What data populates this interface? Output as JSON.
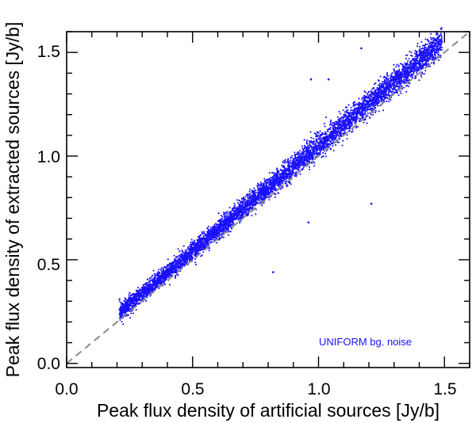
{
  "chart_data": {
    "type": "scatter",
    "xlabel": "Peak flux density of artificial sources [Jy/b]",
    "ylabel": "Peak flux density of extracted sources [Jy/b]",
    "xlim": [
      0.0,
      1.6
    ],
    "ylim": [
      -0.02,
      1.6
    ],
    "x_ticks": [
      "0.0",
      "0.5",
      "1.0",
      "1.5"
    ],
    "y_ticks": [
      "0.0",
      "0.5",
      "1.0",
      "1.5"
    ],
    "grid": false,
    "annotation": "UNIFORM bg. noise",
    "reference_line": {
      "style": "dashed",
      "description": "y = x",
      "from": [
        0.0,
        0.0
      ],
      "to": [
        1.6,
        1.6
      ]
    },
    "series": [
      {
        "marker_color": "#1a10ff",
        "x_range": [
          0.21,
          1.49
        ],
        "approx_count": 6000,
        "trend": "y ≈ 1.02·x + 0.03",
        "scatter_sd_y": 0.025,
        "points": [
          [
            0.21,
            0.26
          ],
          [
            0.21,
            0.31
          ],
          [
            0.22,
            0.29
          ],
          [
            0.23,
            0.25
          ],
          [
            0.25,
            0.34
          ],
          [
            0.3,
            0.33
          ],
          [
            0.35,
            0.38
          ],
          [
            0.4,
            0.44
          ],
          [
            0.45,
            0.49
          ],
          [
            0.5,
            0.55
          ],
          [
            0.55,
            0.59
          ],
          [
            0.6,
            0.64
          ],
          [
            0.65,
            0.69
          ],
          [
            0.7,
            0.75
          ],
          [
            0.75,
            0.79
          ],
          [
            0.8,
            0.85
          ],
          [
            0.85,
            0.9
          ],
          [
            0.9,
            0.95
          ],
          [
            0.95,
            1.0
          ],
          [
            1.0,
            1.05
          ],
          [
            1.05,
            1.1
          ],
          [
            1.1,
            1.15
          ],
          [
            1.15,
            1.2
          ],
          [
            1.2,
            1.25
          ],
          [
            1.25,
            1.3
          ],
          [
            1.3,
            1.35
          ],
          [
            1.35,
            1.4
          ],
          [
            1.4,
            1.45
          ],
          [
            1.45,
            1.5
          ],
          [
            1.48,
            1.56
          ]
        ],
        "outliers": [
          [
            0.82,
            0.44
          ],
          [
            0.97,
            1.37
          ],
          [
            1.04,
            1.37
          ],
          [
            0.96,
            0.68
          ],
          [
            1.21,
            0.77
          ],
          [
            1.17,
            1.52
          ]
        ]
      }
    ]
  }
}
